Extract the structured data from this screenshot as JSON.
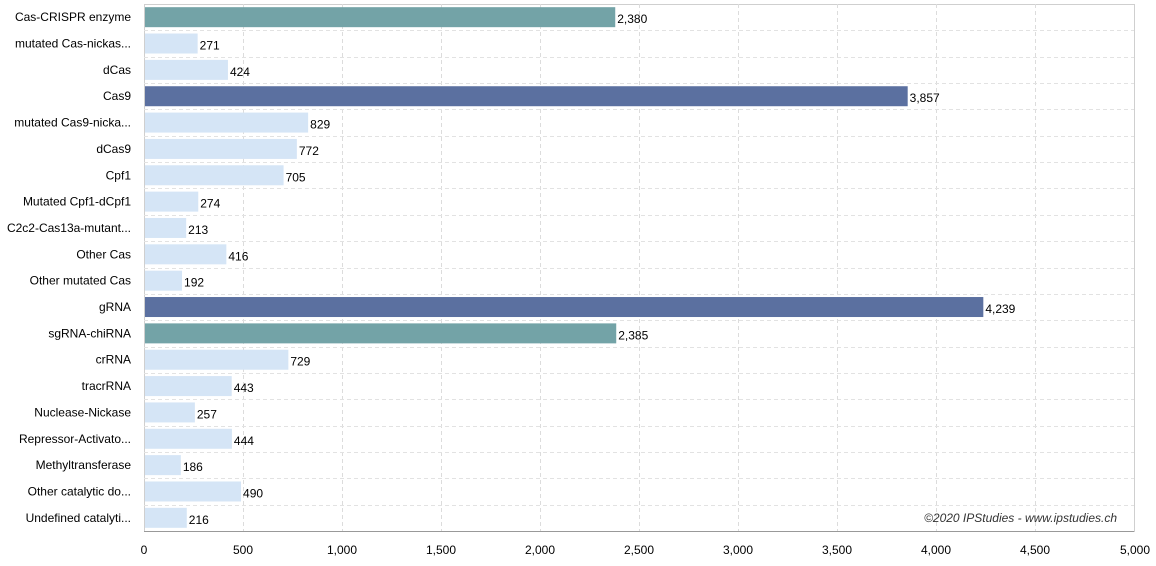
{
  "chart_data": {
    "type": "bar",
    "orientation": "horizontal",
    "categories": [
      "Cas-CRISPR enzyme",
      "mutated Cas-nickas...",
      "dCas",
      "Cas9",
      "mutated Cas9-nicka...",
      "dCas9",
      "Cpf1",
      "Mutated Cpf1-dCpf1",
      "C2c2-Cas13a-mutant...",
      "Other Cas",
      "Other mutated Cas",
      "gRNA",
      "sgRNA-chiRNA",
      "crRNA",
      "tracrRNA",
      "Nuclease-Nickase",
      "Repressor-Activato...",
      "Methyltransferase",
      "Other catalytic do...",
      "Undefined catalyti..."
    ],
    "values": [
      2380,
      271,
      424,
      3857,
      829,
      772,
      705,
      274,
      213,
      416,
      192,
      4239,
      2385,
      729,
      443,
      257,
      444,
      186,
      490,
      216
    ],
    "value_labels": [
      "2,380",
      "271",
      "424",
      "3,857",
      "829",
      "772",
      "705",
      "274",
      "213",
      "416",
      "192",
      "4,239",
      "2,385",
      "729",
      "443",
      "257",
      "444",
      "186",
      "490",
      "216"
    ],
    "bar_colors": [
      "#73a3a7",
      "#d5e5f6",
      "#d5e5f6",
      "#5b70a0",
      "#d5e5f6",
      "#d5e5f6",
      "#d5e5f6",
      "#d5e5f6",
      "#d5e5f6",
      "#d5e5f6",
      "#d5e5f6",
      "#5b70a0",
      "#73a3a7",
      "#d5e5f6",
      "#d5e5f6",
      "#d5e5f6",
      "#d5e5f6",
      "#d5e5f6",
      "#d5e5f6",
      "#d5e5f6"
    ],
    "xlim": [
      0,
      5000
    ],
    "x_ticks": [
      0,
      500,
      1000,
      1500,
      2000,
      2500,
      3000,
      3500,
      4000,
      4500,
      5000
    ],
    "x_tick_labels": [
      "0",
      "500",
      "1,000",
      "1,500",
      "2,000",
      "2,500",
      "3,000",
      "3,500",
      "4,000",
      "4,500",
      "5,000"
    ],
    "grid": true,
    "title": "",
    "xlabel": "",
    "ylabel": "",
    "watermark": "©2020 IPStudies - www.ipstudies.ch"
  }
}
